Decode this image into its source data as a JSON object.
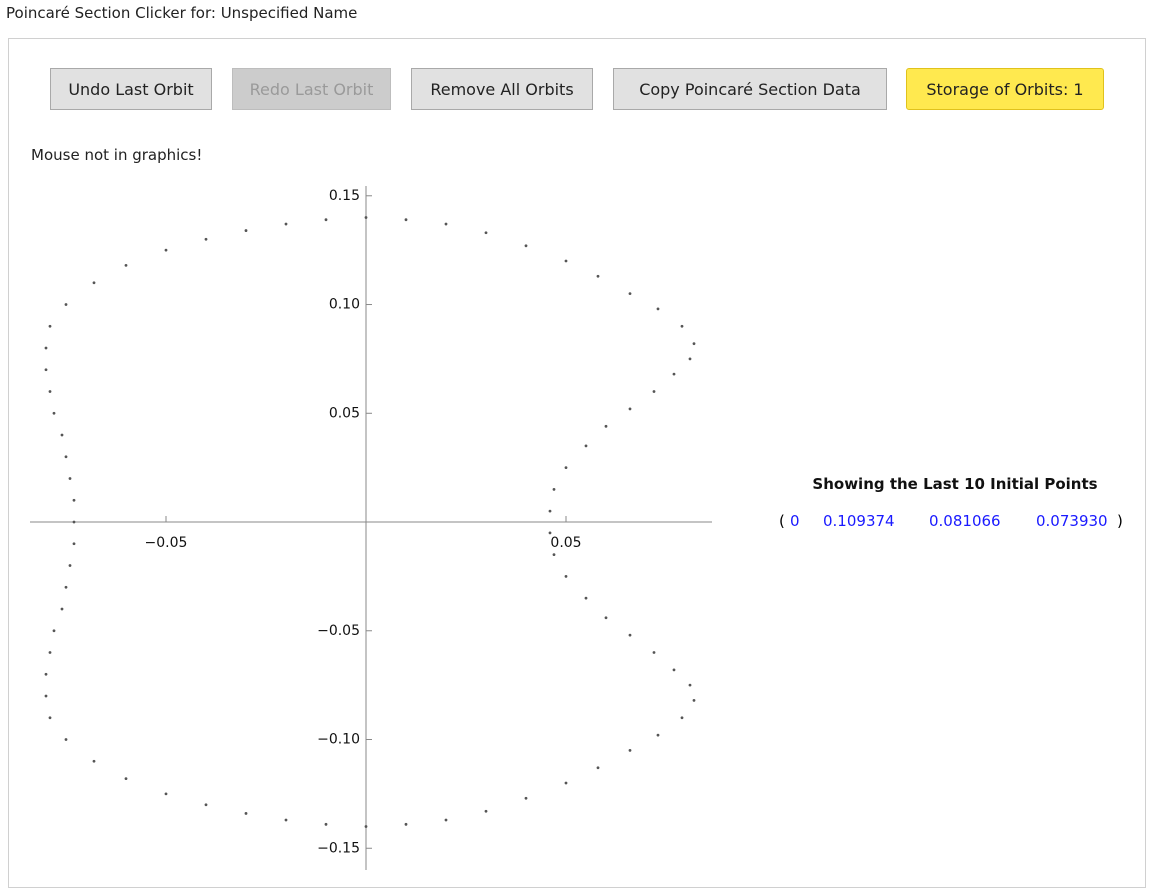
{
  "window_title": "Poincaré Section Clicker for: Unspecified Name",
  "buttons": [
    {
      "label": "Undo Last Orbit",
      "enabled": true
    },
    {
      "label": "Redo Last Orbit",
      "enabled": false
    },
    {
      "label": "Remove All Orbits",
      "enabled": true
    },
    {
      "label": "Copy Poincaré Section Data",
      "enabled": true
    },
    {
      "label": "Storage of Orbits: 1",
      "enabled": true
    }
  ],
  "status": "Mouse not in graphics!",
  "initial_points": {
    "heading": "Showing the Last 10 Initial Points",
    "open": "(",
    "close": ")",
    "values": [
      "0",
      "0.109374",
      "0.081066",
      "0.073930"
    ]
  },
  "chart_data": {
    "type": "scatter",
    "color": "#555555",
    "xlim": [
      -0.084,
      0.0865
    ],
    "ylim": [
      -0.16,
      0.1545
    ],
    "xticks": [
      {
        "value": -0.05,
        "label": "−0.05"
      },
      0.05
    ],
    "yticks": [
      {
        "value": -0.15,
        "label": "−0.15"
      },
      {
        "value": -0.1,
        "label": "−0.10"
      },
      {
        "value": -0.05,
        "label": "−0.05"
      },
      0.05,
      {
        "value": 0.1,
        "label": "0.10"
      },
      0.15
    ],
    "x": [
      0,
      0.01,
      0.02,
      0.03,
      0.04,
      0.05,
      0.058,
      0.066,
      0.073,
      0.079,
      0.082,
      0.081,
      0.077,
      0.072,
      0.066,
      0.06,
      0.055,
      0.05,
      0.047,
      0.046,
      -0.01,
      -0.02,
      -0.03,
      -0.04,
      -0.05,
      -0.06,
      -0.068,
      -0.075,
      -0.079,
      -0.08,
      -0.08,
      -0.079,
      -0.078,
      -0.076,
      -0.075,
      -0.074,
      -0.073,
      -0.073,
      0,
      0.01,
      0.02,
      0.03,
      0.04,
      0.05,
      0.058,
      0.066,
      0.073,
      0.079,
      0.082,
      0.081,
      0.077,
      0.072,
      0.066,
      0.06,
      0.055,
      0.05,
      0.047,
      0.046,
      -0.01,
      -0.02,
      -0.03,
      -0.04,
      -0.05,
      -0.06,
      -0.068,
      -0.075,
      -0.079,
      -0.08,
      -0.08,
      -0.079,
      -0.078,
      -0.076,
      -0.075,
      -0.074,
      -0.073
    ],
    "y": [
      0.14,
      0.139,
      0.137,
      0.133,
      0.127,
      0.12,
      0.113,
      0.105,
      0.098,
      0.09,
      0.082,
      0.075,
      0.068,
      0.06,
      0.052,
      0.044,
      0.035,
      0.025,
      0.015,
      0.005,
      0.139,
      0.137,
      0.134,
      0.13,
      0.125,
      0.118,
      0.11,
      0.1,
      0.09,
      0.08,
      0.07,
      0.06,
      0.05,
      0.04,
      0.03,
      0.02,
      0.01,
      0,
      -0.14,
      -0.139,
      -0.137,
      -0.133,
      -0.127,
      -0.12,
      -0.113,
      -0.105,
      -0.098,
      -0.09,
      -0.082,
      -0.075,
      -0.068,
      -0.06,
      -0.052,
      -0.044,
      -0.035,
      -0.025,
      -0.015,
      -0.005,
      -0.139,
      -0.137,
      -0.134,
      -0.13,
      -0.125,
      -0.118,
      -0.11,
      -0.1,
      -0.09,
      -0.08,
      -0.07,
      -0.06,
      -0.05,
      -0.04,
      -0.03,
      -0.02,
      -0.01
    ]
  }
}
